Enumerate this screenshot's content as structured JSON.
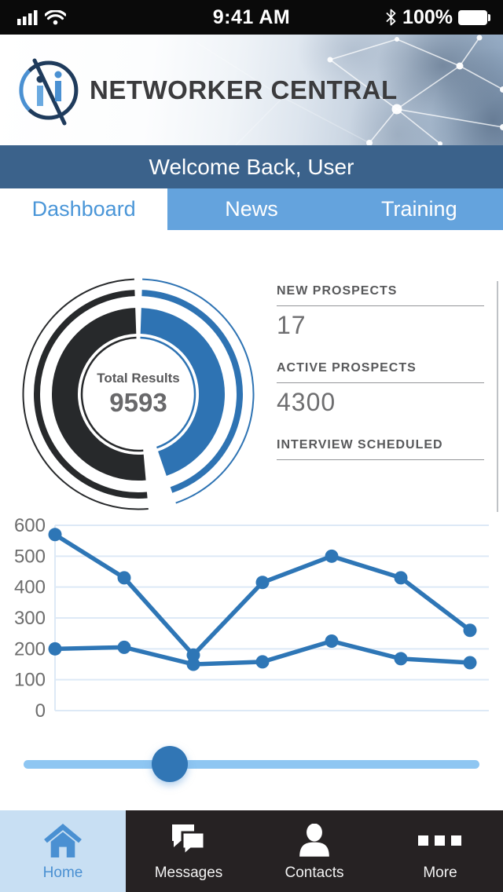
{
  "status_bar": {
    "time": "9:41 AM",
    "battery_percent": "100%"
  },
  "header": {
    "app_name": "NETWORKER CENTRAL"
  },
  "welcome": {
    "title": "Welcome Back, User"
  },
  "tabs": [
    {
      "label": "Dashboard",
      "active": true
    },
    {
      "label": "News",
      "active": false
    },
    {
      "label": "Training",
      "active": false
    }
  ],
  "stats": [
    {
      "label": "NEW PROSPECTS",
      "value": "17"
    },
    {
      "label": "ACTIVE PROSPECTS",
      "value": "4300"
    },
    {
      "label": "INTERVIEW SCHEDULED",
      "value": ""
    }
  ],
  "chart_data": [
    {
      "type": "donut",
      "center_label": "Total Results",
      "center_value": "9593",
      "segments": [
        {
          "name": "right-segment",
          "color": "#2e73b3",
          "start_deg": 2,
          "end_deg": 161
        },
        {
          "name": "left-segment",
          "color": "#27292b",
          "start_deg": 175,
          "end_deg": 358
        }
      ]
    },
    {
      "type": "line",
      "title": "",
      "xlabel": "",
      "ylabel": "",
      "ylim": [
        0,
        600
      ],
      "yticks": [
        600,
        500,
        400,
        300,
        200,
        100,
        0
      ],
      "grid": true,
      "legend": "none",
      "line_color": "#2e76b6",
      "x": [
        1,
        2,
        3,
        4,
        5,
        6,
        7
      ],
      "series": [
        {
          "name": "series-1",
          "values": [
            570,
            430,
            180,
            415,
            500,
            430,
            260
          ]
        },
        {
          "name": "series-2",
          "values": [
            200,
            205,
            150,
            158,
            225,
            168,
            155
          ]
        }
      ]
    }
  ],
  "slider": {
    "value_percent": 32
  },
  "bottom_nav": [
    {
      "label": "Home",
      "icon": "home-icon",
      "active": true
    },
    {
      "label": "Messages",
      "icon": "messages-icon",
      "active": false
    },
    {
      "label": "Contacts",
      "icon": "contacts-icon",
      "active": false
    },
    {
      "label": "More",
      "icon": "more-icon",
      "active": false
    }
  ],
  "colors": {
    "welcome_bar": "#3b628b",
    "tab_bg": "#64a3dd",
    "tab_active_text": "#4a96d8",
    "accent_blue": "#2e76b6",
    "donut_dark": "#27292b",
    "grid_line": "#dde9f6",
    "slider_track": "#8ec6f2",
    "slider_handle": "#3176b5",
    "nav_bg": "#262223",
    "nav_active_bg": "#c8dff3",
    "nav_active_text": "#4a90d2"
  }
}
